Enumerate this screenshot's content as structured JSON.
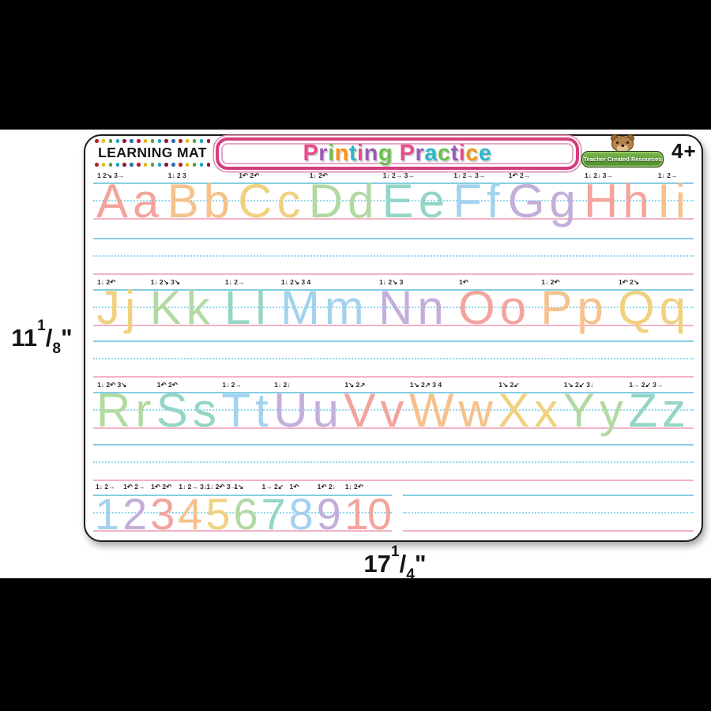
{
  "page": {
    "letterbox_color": "#000000",
    "photo_background": "#ffffff"
  },
  "mat": {
    "brand": "LEARNING MAT",
    "dot_colors": [
      "#b22234",
      "#e8b90f",
      "#4e9f3d",
      "#18a8c6",
      "#8e1537",
      "#2d6bb4"
    ],
    "title": {
      "text": "Printing Practice",
      "border_color": "#d53e7e",
      "letters": [
        {
          "ch": "P",
          "color": "#e94a8c"
        },
        {
          "ch": "r",
          "color": "#9b59b6"
        },
        {
          "ch": "i",
          "color": "#6cbf4c"
        },
        {
          "ch": "n",
          "color": "#f6941e"
        },
        {
          "ch": "t",
          "color": "#2fb6c9"
        },
        {
          "ch": "i",
          "color": "#e94a8c"
        },
        {
          "ch": "n",
          "color": "#9b59b6"
        },
        {
          "ch": "g",
          "color": "#6cbf4c"
        },
        {
          "ch": " ",
          "color": ""
        },
        {
          "ch": "P",
          "color": "#e94a8c"
        },
        {
          "ch": "r",
          "color": "#9b59b6"
        },
        {
          "ch": "a",
          "color": "#2fb6c9"
        },
        {
          "ch": "c",
          "color": "#6cbf4c"
        },
        {
          "ch": "t",
          "color": "#9b59b6"
        },
        {
          "ch": "i",
          "color": "#e94a8c"
        },
        {
          "ch": "c",
          "color": "#f6941e"
        },
        {
          "ch": "e",
          "color": "#2fb6c9"
        }
      ]
    },
    "publisher": "Teacher Created Resources",
    "age_label": "4+",
    "line_colors": {
      "top": "#85cee4",
      "middle": "#8fd8ee",
      "bottom": "#f2b3c5"
    },
    "palette": {
      "salmon": "#f4a39d",
      "orange": "#f6c18c",
      "yellow": "#f1d180",
      "green": "#b2d9a2",
      "teal": "#94d5c7",
      "blue": "#a3d2ee",
      "purple": "#c3aeda"
    },
    "rows": [
      {
        "type": "letters",
        "pairs": [
          {
            "text": "Aa",
            "color": "#f4a39d",
            "marks": "1 2↘ 3→"
          },
          {
            "text": "Bb",
            "color": "#f6c18c",
            "marks": "1↓ 2 3"
          },
          {
            "text": "Cc",
            "color": "#f1d180",
            "marks": "1↶ 2↶"
          },
          {
            "text": "Dd",
            "color": "#b2d9a2",
            "marks": "1↓ 2↶"
          },
          {
            "text": "Ee",
            "color": "#94d5c7",
            "marks": "1↓ 2→ 3→"
          },
          {
            "text": "Ff",
            "color": "#a3d2ee",
            "marks": "1↓ 2→ 3→"
          },
          {
            "text": "Gg",
            "color": "#c3aeda",
            "marks": "1↶ 2→"
          },
          {
            "text": "Hh",
            "color": "#f4a39d",
            "marks": "1↓ 2↓ 3→"
          },
          {
            "text": "Ii",
            "color": "#f6c18c",
            "marks": "1↓ 2→"
          }
        ]
      },
      {
        "type": "blank"
      },
      {
        "type": "letters",
        "pairs": [
          {
            "text": "Jj",
            "color": "#f1d180",
            "marks": "1↓ 2↶"
          },
          {
            "text": "Kk",
            "color": "#b2d9a2",
            "marks": "1↓ 2↘ 3↘"
          },
          {
            "text": "Ll",
            "color": "#94d5c7",
            "marks": "1↓ 2→"
          },
          {
            "text": "Mm",
            "color": "#a3d2ee",
            "marks": "1↓ 2↘ 3 4"
          },
          {
            "text": "Nn",
            "color": "#c3aeda",
            "marks": "1↓ 2↘ 3"
          },
          {
            "text": "Oo",
            "color": "#f4a39d",
            "marks": "1↶"
          },
          {
            "text": "Pp",
            "color": "#f6c18c",
            "marks": "1↓ 2↶"
          },
          {
            "text": "Qq",
            "color": "#f1d180",
            "marks": "1↶ 2↘"
          }
        ]
      },
      {
        "type": "blank"
      },
      {
        "type": "letters",
        "pairs": [
          {
            "text": "Rr",
            "color": "#b2d9a2",
            "marks": "1↓ 2↶ 3↘"
          },
          {
            "text": "Ss",
            "color": "#94d5c7",
            "marks": "1↶ 2↶"
          },
          {
            "text": "Tt",
            "color": "#a3d2ee",
            "marks": "1↓ 2→"
          },
          {
            "text": "Uu",
            "color": "#c3aeda",
            "marks": "1↓ 2↓"
          },
          {
            "text": "Vv",
            "color": "#f4a39d",
            "marks": "1↘ 2↗"
          },
          {
            "text": "Ww",
            "color": "#f6c18c",
            "marks": "1↘ 2↗ 3 4"
          },
          {
            "text": "Xx",
            "color": "#f1d180",
            "marks": "1↘ 2↙"
          },
          {
            "text": "Yy",
            "color": "#b2d9a2",
            "marks": "1↘ 2↙ 3↓"
          },
          {
            "text": "Zz",
            "color": "#94d5c7",
            "marks": "1→ 2↙ 3→"
          }
        ]
      },
      {
        "type": "blank"
      },
      {
        "type": "numbers",
        "items": [
          {
            "text": "1",
            "color": "#a3d2ee",
            "marks": "1↓ 2→"
          },
          {
            "text": "2",
            "color": "#c3aeda",
            "marks": "1↶ 2→"
          },
          {
            "text": "3",
            "color": "#f4a39d",
            "marks": "1↶ 2↶"
          },
          {
            "text": "4",
            "color": "#f6c18c",
            "marks": "1↓ 2→ 3↓"
          },
          {
            "text": "5",
            "color": "#f1d180",
            "marks": "1↓ 2↶ 3→"
          },
          {
            "text": "6",
            "color": "#b2d9a2",
            "marks": "1↘"
          },
          {
            "text": "7",
            "color": "#94d5c7",
            "marks": "1→ 2↙"
          },
          {
            "text": "8",
            "color": "#a3d2ee",
            "marks": "1↶"
          },
          {
            "text": "9",
            "color": "#c3aeda",
            "marks": "1↶ 2↓"
          },
          {
            "text": "10",
            "color": "#f4a39d",
            "marks": "1↓ 2↶"
          }
        ]
      }
    ]
  },
  "dimensions": {
    "height": {
      "whole": "11",
      "numerator": "1",
      "denominator": "8",
      "unit": "\""
    },
    "width": {
      "whole": "17",
      "numerator": "1",
      "denominator": "4",
      "unit": "\""
    }
  }
}
